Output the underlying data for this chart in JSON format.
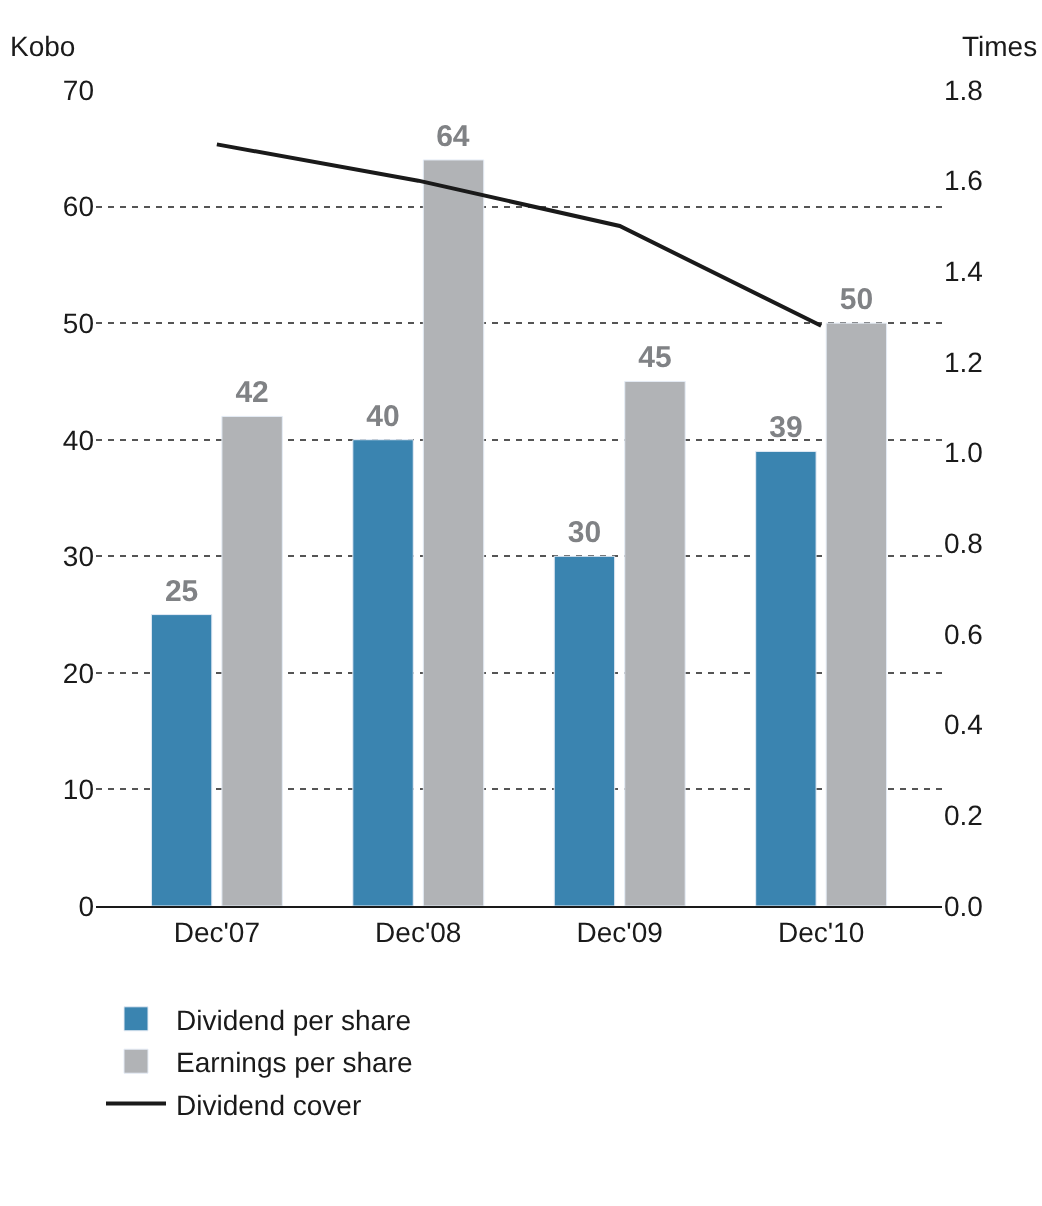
{
  "chart_data": {
    "type": "bar",
    "categories": [
      "Dec'07",
      "Dec'08",
      "Dec'09",
      "Dec'10"
    ],
    "ylabel": "Kobo",
    "y2label": "Times",
    "series": [
      {
        "name": "Dividend per share",
        "color": "#3a84b0",
        "values": [
          25,
          40,
          30,
          39
        ],
        "value_labels": [
          "25",
          "40",
          "30",
          "39"
        ]
      },
      {
        "name": "Earnings per share",
        "color": "#b1b3b6",
        "values": [
          42,
          64,
          45,
          50
        ],
        "value_labels": [
          "42",
          "64",
          "45",
          "50"
        ]
      },
      {
        "name": "Dividend cover",
        "type": "line",
        "axis": "y2",
        "color": "#1a1a1a",
        "values": [
          1.68,
          1.6,
          1.5,
          1.28
        ]
      }
    ],
    "ylim": [
      0,
      70
    ],
    "yticks": [
      0,
      10,
      20,
      30,
      40,
      50,
      60,
      70
    ],
    "y2lim": [
      0,
      1.8
    ],
    "y2ticks": [
      {
        "value": 0,
        "label": "0.0"
      },
      0.2,
      0.4,
      0.6,
      0.8,
      {
        "value": 1,
        "label": "1.0"
      },
      1.2,
      1.4,
      1.6,
      1.8
    ],
    "grid": "y",
    "legend": "bottom",
    "marker": "none"
  }
}
